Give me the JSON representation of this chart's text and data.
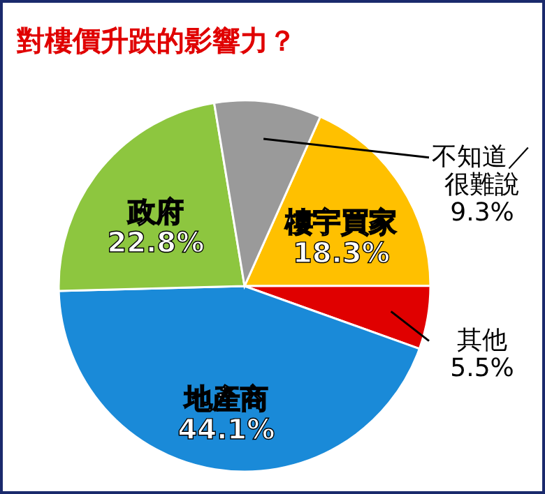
{
  "chart_data": {
    "type": "pie",
    "title": "對樓價升跌的影響力？",
    "categories": [
      "樓宇買家",
      "其他",
      "地產商",
      "政府",
      "不知道／很難說"
    ],
    "values": [
      18.3,
      5.5,
      44.1,
      22.8,
      9.3
    ],
    "colors": [
      "#ffc000",
      "#e00000",
      "#1a8ad8",
      "#8dc63f",
      "#9a9a9a"
    ],
    "value_labels": [
      "18.3%",
      "5.5%",
      "44.1%",
      "22.8%",
      "9.3%"
    ]
  }
}
